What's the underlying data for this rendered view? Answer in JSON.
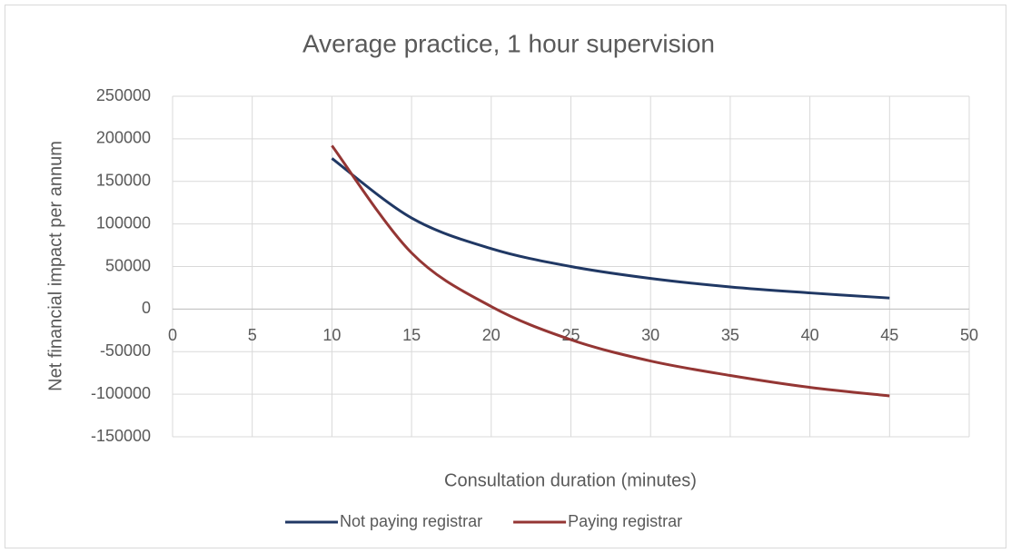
{
  "chart_data": {
    "type": "line",
    "title": "Average practice, 1 hour supervision",
    "x_label": "Consultation duration (minutes)",
    "y_label": "Net financial impact per annum",
    "x": [
      10,
      15,
      20,
      25,
      30,
      35,
      40,
      45
    ],
    "series": [
      {
        "name": "Not paying registrar",
        "color": "#203864",
        "values": [
          177000,
          107000,
          71000,
          50000,
          36000,
          26000,
          19000,
          13000
        ]
      },
      {
        "name": "Paying registrar",
        "color": "#943634",
        "values": [
          192000,
          66000,
          3000,
          -36000,
          -61000,
          -78000,
          -92000,
          -102000
        ]
      }
    ],
    "xlim": [
      0,
      50
    ],
    "xticks": [
      0,
      5,
      10,
      15,
      20,
      25,
      30,
      35,
      40,
      45,
      50
    ],
    "ylim": [
      -150000,
      250000
    ],
    "yticks": [
      -150000,
      -100000,
      -50000,
      0,
      50000,
      100000,
      150000,
      200000,
      250000
    ],
    "grid": true,
    "legend": "bottom"
  }
}
